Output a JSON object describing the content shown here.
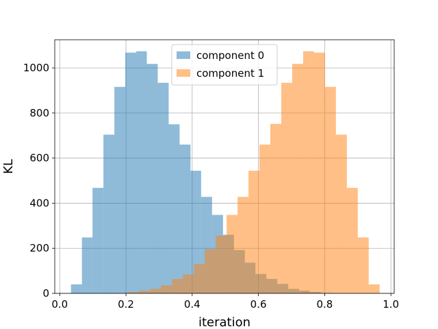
{
  "chart_data": {
    "type": "histogram",
    "xlabel": "iteration",
    "ylabel": "KL",
    "xlim": [
      -0.015,
      1.01
    ],
    "ylim": [
      0,
      1125
    ],
    "xticks": [
      0.0,
      0.2,
      0.4,
      0.6,
      0.8,
      1.0
    ],
    "xtick_labels": [
      "0.0",
      "0.2",
      "0.4",
      "0.6",
      "0.8",
      "1.0"
    ],
    "yticks": [
      0,
      200,
      400,
      600,
      800,
      1000
    ],
    "ytick_labels": [
      "0",
      "200",
      "400",
      "600",
      "800",
      "1000"
    ],
    "grid": true,
    "legend_position": "top-center",
    "series": [
      {
        "name": "component 0",
        "color": "#1f77b4",
        "alpha": 0.5,
        "bins": [
          {
            "x0": 0.034,
            "x1": 0.067,
            "count": 40
          },
          {
            "x0": 0.067,
            "x1": 0.099,
            "count": 248
          },
          {
            "x0": 0.099,
            "x1": 0.132,
            "count": 468
          },
          {
            "x0": 0.132,
            "x1": 0.165,
            "count": 704
          },
          {
            "x0": 0.165,
            "x1": 0.198,
            "count": 916
          },
          {
            "x0": 0.198,
            "x1": 0.231,
            "count": 1068
          },
          {
            "x0": 0.231,
            "x1": 0.263,
            "count": 1074
          },
          {
            "x0": 0.263,
            "x1": 0.296,
            "count": 1018
          },
          {
            "x0": 0.296,
            "x1": 0.329,
            "count": 934
          },
          {
            "x0": 0.329,
            "x1": 0.362,
            "count": 750
          },
          {
            "x0": 0.362,
            "x1": 0.395,
            "count": 660
          },
          {
            "x0": 0.395,
            "x1": 0.427,
            "count": 544
          },
          {
            "x0": 0.427,
            "x1": 0.46,
            "count": 428
          },
          {
            "x0": 0.46,
            "x1": 0.493,
            "count": 348
          },
          {
            "x0": 0.493,
            "x1": 0.526,
            "count": 260
          },
          {
            "x0": 0.526,
            "x1": 0.559,
            "count": 192
          },
          {
            "x0": 0.559,
            "x1": 0.591,
            "count": 136
          },
          {
            "x0": 0.591,
            "x1": 0.624,
            "count": 86
          },
          {
            "x0": 0.624,
            "x1": 0.657,
            "count": 64
          },
          {
            "x0": 0.657,
            "x1": 0.69,
            "count": 42
          },
          {
            "x0": 0.69,
            "x1": 0.723,
            "count": 20
          },
          {
            "x0": 0.723,
            "x1": 0.755,
            "count": 12
          },
          {
            "x0": 0.755,
            "x1": 0.788,
            "count": 6
          },
          {
            "x0": 0.788,
            "x1": 0.821,
            "count": 2
          }
        ]
      },
      {
        "name": "component 1",
        "color": "#ff7f0e",
        "alpha": 0.5,
        "bins": [
          {
            "x0": 0.174,
            "x1": 0.207,
            "count": 2
          },
          {
            "x0": 0.207,
            "x1": 0.24,
            "count": 6
          },
          {
            "x0": 0.24,
            "x1": 0.273,
            "count": 12
          },
          {
            "x0": 0.273,
            "x1": 0.306,
            "count": 20
          },
          {
            "x0": 0.306,
            "x1": 0.339,
            "count": 36
          },
          {
            "x0": 0.339,
            "x1": 0.372,
            "count": 64
          },
          {
            "x0": 0.372,
            "x1": 0.405,
            "count": 84
          },
          {
            "x0": 0.405,
            "x1": 0.438,
            "count": 130
          },
          {
            "x0": 0.438,
            "x1": 0.471,
            "count": 196
          },
          {
            "x0": 0.471,
            "x1": 0.504,
            "count": 256
          },
          {
            "x0": 0.504,
            "x1": 0.537,
            "count": 348
          },
          {
            "x0": 0.537,
            "x1": 0.57,
            "count": 428
          },
          {
            "x0": 0.57,
            "x1": 0.603,
            "count": 544
          },
          {
            "x0": 0.603,
            "x1": 0.636,
            "count": 660
          },
          {
            "x0": 0.636,
            "x1": 0.669,
            "count": 752
          },
          {
            "x0": 0.669,
            "x1": 0.702,
            "count": 934
          },
          {
            "x0": 0.702,
            "x1": 0.735,
            "count": 1018
          },
          {
            "x0": 0.735,
            "x1": 0.768,
            "count": 1074
          },
          {
            "x0": 0.768,
            "x1": 0.801,
            "count": 1068
          },
          {
            "x0": 0.801,
            "x1": 0.834,
            "count": 916
          },
          {
            "x0": 0.834,
            "x1": 0.867,
            "count": 704
          },
          {
            "x0": 0.867,
            "x1": 0.9,
            "count": 468
          },
          {
            "x0": 0.9,
            "x1": 0.933,
            "count": 248
          },
          {
            "x0": 0.933,
            "x1": 0.966,
            "count": 40
          }
        ]
      }
    ]
  }
}
